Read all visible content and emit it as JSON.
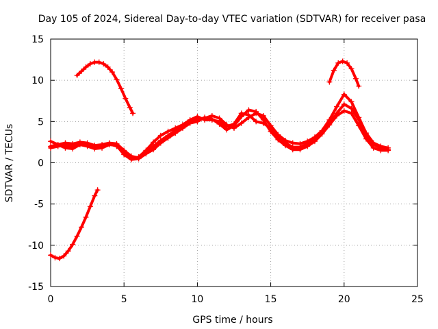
{
  "chart_data": {
    "type": "line",
    "title": "Day 105 of 2024, Sidereal Day-to-day VTEC variation (SDTVAR) for receiver pasa",
    "xlabel": "GPS time / hours",
    "ylabel": "SDTVAR / TECUs",
    "xlim": [
      0,
      25
    ],
    "ylim": [
      -15,
      15
    ],
    "xticks": [
      0,
      5,
      10,
      15,
      20,
      25
    ],
    "yticks": [
      -15,
      -10,
      -5,
      0,
      5,
      10,
      15
    ],
    "xtick_labels": [
      "0",
      "5",
      "10",
      "15",
      "20",
      "25"
    ],
    "ytick_labels": [
      "-15",
      "-10",
      "-5",
      "0",
      "5",
      "10",
      "15"
    ],
    "grid": true,
    "legend": "none",
    "series_color": "#ff0000",
    "marker": "plus",
    "series": [
      {
        "name": "pass-low",
        "x": [
          0.0,
          0.3,
          0.6,
          0.9,
          1.2,
          1.5,
          1.8,
          2.1,
          2.4,
          2.7,
          3.0,
          3.2
        ],
        "y": [
          -11.2,
          -11.5,
          -11.6,
          -11.3,
          -10.7,
          -9.9,
          -8.9,
          -7.8,
          -6.6,
          -5.3,
          -4.0,
          -3.3
        ]
      },
      {
        "name": "pass-high-early",
        "x": [
          1.8,
          2.1,
          2.4,
          2.7,
          3.0,
          3.3,
          3.6,
          3.9,
          4.2,
          4.5,
          4.8,
          5.1,
          5.4,
          5.6
        ],
        "y": [
          10.6,
          11.1,
          11.6,
          12.0,
          12.2,
          12.2,
          12.0,
          11.6,
          11.0,
          10.1,
          9.0,
          7.8,
          6.7,
          6.0
        ]
      },
      {
        "name": "track-a",
        "x": [
          0.0,
          0.5,
          1.0,
          1.5,
          2.0,
          2.5,
          3.0,
          3.5,
          4.0,
          4.5,
          5.0,
          5.5,
          6.0,
          6.5,
          7.0,
          7.5,
          8.0,
          8.5,
          9.0,
          9.5,
          10.0,
          10.5,
          11.0,
          11.5,
          12.0,
          12.5,
          13.0,
          13.5,
          14.0,
          14.5,
          15.0,
          15.5,
          16.0,
          16.5,
          17.0,
          17.5,
          18.0,
          18.5,
          19.0,
          19.5,
          20.0,
          20.5,
          21.0,
          21.5,
          22.0,
          22.5,
          23.0
        ],
        "y": [
          2.0,
          2.2,
          2.4,
          2.3,
          2.5,
          2.4,
          2.1,
          2.2,
          2.4,
          2.3,
          1.5,
          0.8,
          0.6,
          1.2,
          2.0,
          2.7,
          3.3,
          3.9,
          4.4,
          5.0,
          5.3,
          5.4,
          5.7,
          5.4,
          4.6,
          4.2,
          4.8,
          5.5,
          6.0,
          5.7,
          4.5,
          3.4,
          2.7,
          2.4,
          2.3,
          2.6,
          3.1,
          3.9,
          5.2,
          6.8,
          8.3,
          7.4,
          5.5,
          3.6,
          2.4,
          2.0,
          1.8
        ]
      },
      {
        "name": "track-b",
        "x": [
          0.0,
          0.5,
          1.0,
          1.5,
          2.0,
          2.5,
          3.0,
          3.5,
          4.0,
          4.5,
          5.0,
          5.5,
          6.0,
          6.5,
          7.0,
          7.5,
          8.0,
          8.5,
          9.0,
          9.5,
          10.0,
          10.5,
          11.0,
          11.5,
          12.0,
          12.5,
          13.0,
          13.5,
          14.0,
          14.5,
          15.0,
          15.5,
          16.0,
          16.5,
          17.0,
          17.5,
          18.0,
          18.5,
          19.0,
          19.5,
          20.0,
          20.5,
          21.0,
          21.5,
          22.0,
          22.5,
          23.0
        ],
        "y": [
          2.6,
          2.2,
          1.8,
          1.7,
          2.2,
          2.0,
          1.7,
          1.8,
          2.2,
          2.1,
          1.0,
          0.4,
          0.5,
          1.1,
          1.6,
          2.4,
          3.0,
          3.6,
          4.2,
          4.8,
          5.0,
          5.5,
          5.3,
          4.7,
          4.0,
          4.5,
          5.6,
          6.4,
          6.2,
          5.2,
          3.8,
          2.8,
          2.1,
          1.6,
          1.6,
          2.0,
          2.6,
          3.5,
          4.6,
          5.7,
          6.3,
          6.0,
          4.5,
          2.9,
          1.8,
          1.5,
          1.5
        ]
      },
      {
        "name": "track-c",
        "x": [
          0.0,
          0.5,
          1.0,
          1.5,
          2.0,
          2.5,
          3.0,
          3.5,
          4.0,
          4.5,
          5.0,
          5.5,
          6.0,
          6.5,
          7.0,
          7.5,
          8.0,
          8.5,
          9.0,
          9.5,
          10.0,
          10.5,
          11.0,
          11.5,
          12.0,
          12.5,
          13.0,
          13.5,
          14.0,
          14.5,
          15.0,
          15.5,
          16.0,
          16.5,
          17.0,
          17.5,
          18.0,
          18.5,
          19.0,
          19.5,
          20.0,
          20.5,
          21.0,
          21.5,
          22.0,
          22.5,
          23.0
        ],
        "y": [
          1.8,
          2.0,
          2.1,
          2.0,
          2.3,
          2.2,
          1.9,
          2.0,
          2.3,
          2.0,
          1.2,
          0.5,
          0.7,
          1.5,
          2.5,
          3.3,
          3.8,
          4.2,
          4.6,
          5.2,
          5.6,
          5.2,
          5.2,
          5.0,
          4.4,
          4.7,
          6.0,
          5.8,
          5.0,
          4.8,
          4.2,
          3.1,
          2.4,
          1.9,
          1.9,
          2.3,
          2.9,
          3.7,
          4.8,
          6.0,
          7.1,
          6.6,
          5.2,
          3.4,
          2.2,
          1.8,
          1.6
        ]
      },
      {
        "name": "pass-high-late",
        "x": [
          19.0,
          19.3,
          19.6,
          19.9,
          20.2,
          20.5,
          20.8,
          21.0
        ],
        "y": [
          9.8,
          11.2,
          12.1,
          12.3,
          12.1,
          11.4,
          10.2,
          9.3
        ]
      }
    ]
  }
}
